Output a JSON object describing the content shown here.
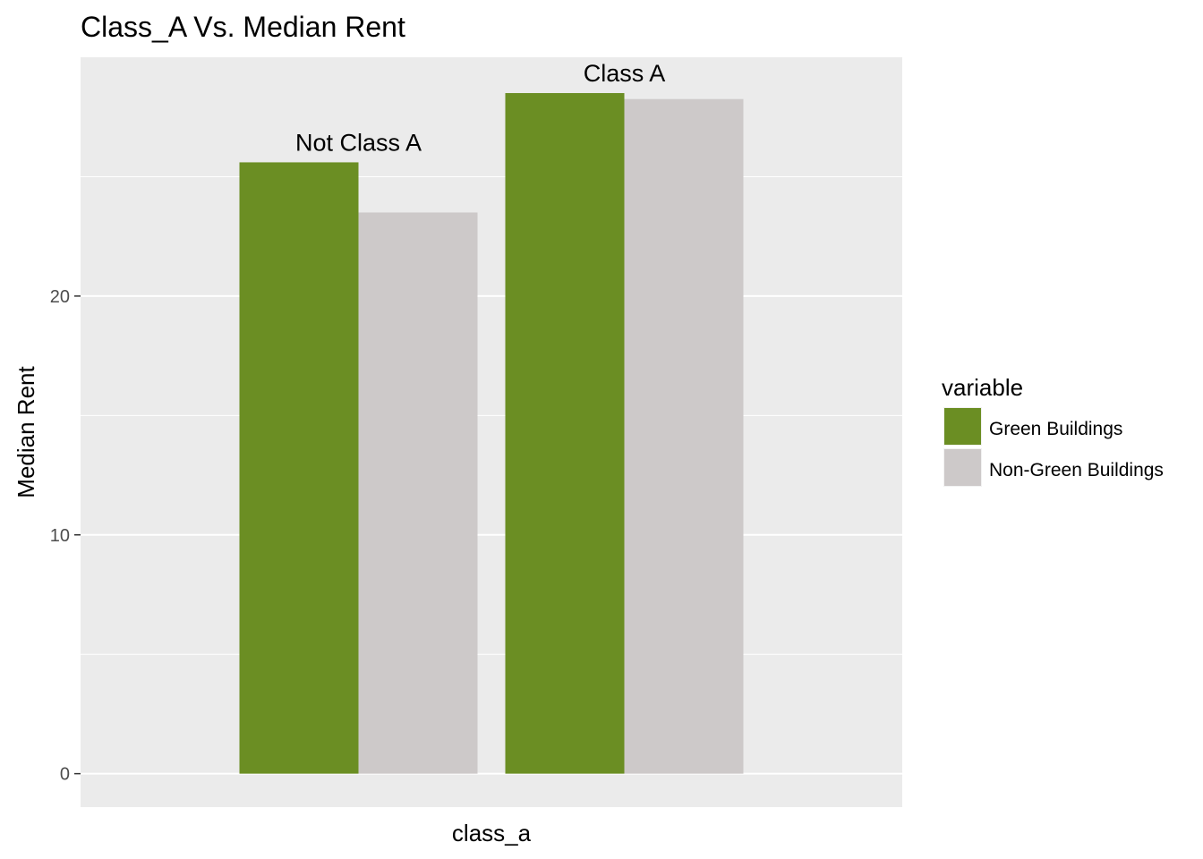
{
  "chart_data": {
    "type": "bar",
    "title": "Class_A Vs. Median Rent",
    "xlabel": "class_a",
    "ylabel": "Median Rent",
    "ylim": [
      -1.4,
      30
    ],
    "yticks": [
      0,
      10,
      20
    ],
    "grid": true,
    "legend": {
      "title": "variable",
      "position": "right"
    },
    "groups": [
      {
        "label": "Not Class A",
        "values": [
          {
            "series": "Green Buildings",
            "value": 25.6
          },
          {
            "series": "Non-Green Buildings",
            "value": 23.5
          }
        ]
      },
      {
        "label": "Class A",
        "values": [
          {
            "series": "Green Buildings",
            "value": 28.5
          },
          {
            "series": "Non-Green Buildings",
            "value": 28.25
          }
        ]
      }
    ],
    "series": [
      {
        "name": "Green Buildings",
        "color": "#6b8e23"
      },
      {
        "name": "Non-Green Buildings",
        "color": "#cdc9c9"
      }
    ]
  }
}
